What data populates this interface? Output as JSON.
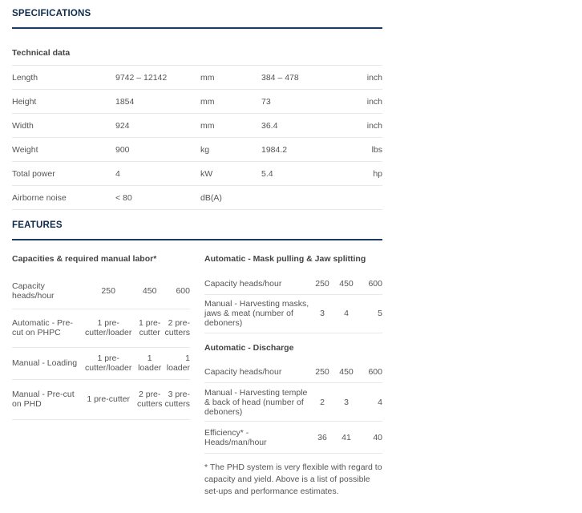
{
  "specifications": {
    "heading": "SPECIFICATIONS",
    "subheading": "Technical data",
    "rows": [
      {
        "label": "Length",
        "metric": "9742 – 12142",
        "metric_unit": "mm",
        "imperial": "384 – 478",
        "imperial_unit": "inch"
      },
      {
        "label": "Height",
        "metric": "1854",
        "metric_unit": "mm",
        "imperial": "73",
        "imperial_unit": "inch"
      },
      {
        "label": "Width",
        "metric": "924",
        "metric_unit": "mm",
        "imperial": "36.4",
        "imperial_unit": "inch"
      },
      {
        "label": "Weight",
        "metric": "900",
        "metric_unit": "kg",
        "imperial": "1984.2",
        "imperial_unit": "lbs"
      },
      {
        "label": "Total power",
        "metric": "4",
        "metric_unit": "kW",
        "imperial": "5.4",
        "imperial_unit": "hp"
      },
      {
        "label": "Airborne noise",
        "metric": "< 80",
        "metric_unit": "dB(A)",
        "imperial": "",
        "imperial_unit": ""
      }
    ]
  },
  "features": {
    "heading": "FEATURES",
    "left": {
      "title": "Capacities & required manual labor*",
      "rows": [
        {
          "label": "Capacity heads/hour",
          "v": [
            "250",
            "450",
            "600"
          ]
        },
        {
          "label": "Automatic - Pre-cut on PHPC",
          "v": [
            "1 pre-cutter/loader",
            "1 pre-cutter",
            "2 pre-cutters"
          ]
        },
        {
          "label": "Manual - Loading",
          "v": [
            "1 pre-cutter/loader",
            "1 loader",
            "1 loader"
          ]
        },
        {
          "label": "Manual - Pre-cut on PHD",
          "v": [
            "1 pre-cutter",
            "2 pre-cutters",
            "3 pre-cutters"
          ]
        }
      ]
    },
    "mask": {
      "title": "Automatic - Mask pulling & Jaw splitting",
      "rows": [
        {
          "label": "Capacity heads/hour",
          "v": [
            "250",
            "450",
            "600"
          ]
        },
        {
          "label": "Manual - Harvesting masks, jaws & meat (number of deboners)",
          "v": [
            "3",
            "4",
            "5"
          ]
        }
      ]
    },
    "discharge": {
      "title": "Automatic - Discharge",
      "rows": [
        {
          "label": "Capacity heads/hour",
          "v": [
            "250",
            "450",
            "600"
          ]
        },
        {
          "label": "Manual - Harvesting temple & back of head (number of deboners)",
          "v": [
            "2",
            "3",
            "4"
          ]
        },
        {
          "label": "Efficiency* - Heads/man/hour",
          "v": [
            "36",
            "41",
            "40"
          ]
        }
      ]
    },
    "footnote": "* The PHD system is very flexible with regard to capacity and yield. Above is a list of possible set-ups and performance estimates."
  }
}
